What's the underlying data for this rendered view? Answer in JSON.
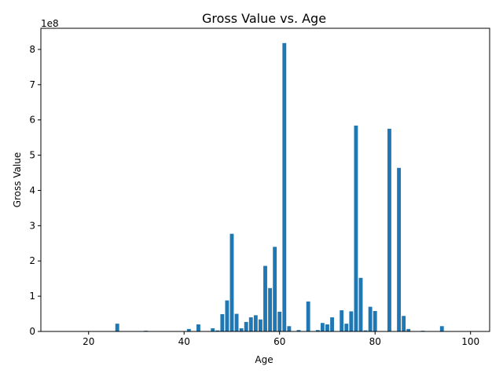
{
  "chart_data": {
    "type": "bar",
    "title": "Gross Value vs. Age",
    "xlabel": "Age",
    "ylabel": "Gross Value",
    "offset_label": "1e8",
    "xlim": [
      10,
      104
    ],
    "ylim": [
      0,
      8.6
    ],
    "xticks": [
      20,
      40,
      60,
      80,
      100
    ],
    "yticks": [
      0,
      1,
      2,
      3,
      4,
      5,
      6,
      7,
      8
    ],
    "bar_color": "#1f77b4",
    "grid": false,
    "x": [
      26,
      32,
      41,
      43,
      46,
      47,
      48,
      49,
      50,
      51,
      52,
      53,
      54,
      55,
      56,
      57,
      58,
      59,
      60,
      61,
      62,
      64,
      66,
      68,
      69,
      70,
      71,
      73,
      74,
      75,
      76,
      77,
      78,
      79,
      80,
      83,
      85,
      86,
      87,
      90,
      94
    ],
    "values": [
      0.22,
      0.02,
      0.07,
      0.2,
      0.09,
      0.03,
      0.49,
      0.88,
      2.77,
      0.5,
      0.09,
      0.27,
      0.4,
      0.46,
      0.34,
      1.86,
      1.23,
      2.4,
      0.56,
      8.18,
      0.15,
      0.04,
      0.85,
      0.04,
      0.24,
      0.2,
      0.4,
      0.6,
      0.22,
      0.57,
      5.84,
      1.52,
      0.03,
      0.7,
      0.58,
      5.75,
      4.64,
      0.44,
      0.07,
      0.02,
      0.15
    ]
  }
}
